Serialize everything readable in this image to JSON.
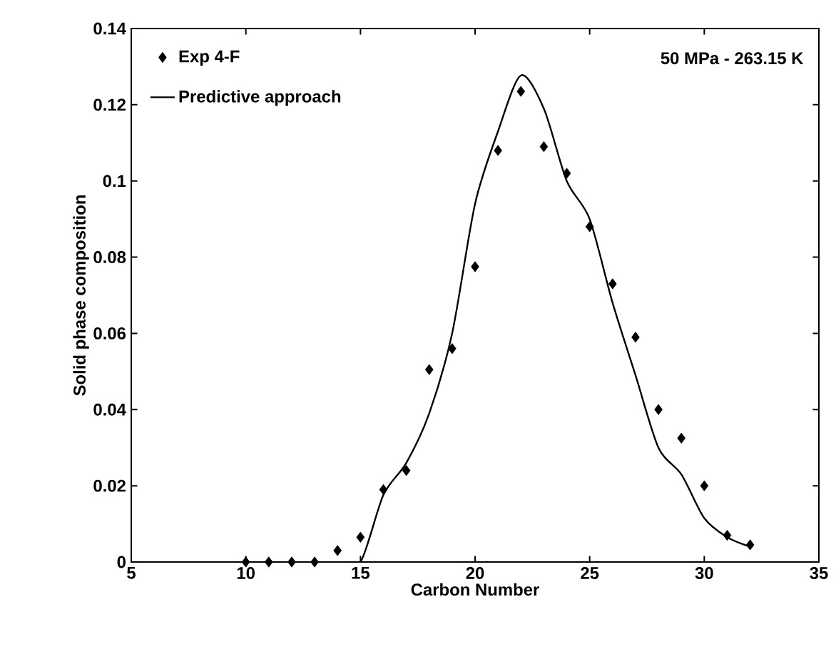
{
  "chart_data": {
    "type": "scatter",
    "xlabel": "Carbon Number",
    "ylabel": "Solid phase composition",
    "annotations": [
      "50 MPa - 263.15 K"
    ],
    "xlim": [
      5,
      35
    ],
    "ylim": [
      0,
      0.14
    ],
    "xticks": [
      5,
      10,
      15,
      20,
      25,
      30,
      35
    ],
    "yticks": [
      0,
      0.02,
      0.04,
      0.06,
      0.08,
      0.1,
      0.12,
      0.14
    ],
    "legend": "top left",
    "grid": false,
    "series": [
      {
        "name": "Exp 4-F",
        "marker": "diamond",
        "color": "#000000",
        "x": [
          10,
          11,
          12,
          13,
          14,
          15,
          16,
          17,
          18,
          19,
          20,
          21,
          22,
          23,
          24,
          25,
          26,
          27,
          28,
          29,
          30,
          31,
          32
        ],
        "values": [
          0,
          0,
          0,
          0,
          0.003,
          0.0065,
          0.019,
          0.024,
          0.0505,
          0.056,
          0.0775,
          0.108,
          0.1235,
          0.109,
          0.102,
          0.088,
          0.073,
          0.059,
          0.04,
          0.0325,
          0.02,
          0.007,
          0.0045
        ]
      },
      {
        "name": "Predictive approach",
        "type": "line",
        "marker": "none",
        "line_style": "solid",
        "color": "#000000",
        "x": [
          14,
          14.4,
          15,
          16,
          17,
          18,
          19,
          20,
          21,
          22,
          23,
          24,
          25,
          26,
          27,
          28,
          29,
          30,
          31,
          32
        ],
        "values": [
          0,
          null,
          0,
          0.0176,
          0.026,
          0.039,
          0.06,
          0.094,
          0.113,
          0.1277,
          0.119,
          0.1,
          0.09,
          0.068,
          0.049,
          0.03,
          0.023,
          0.0115,
          0.0065,
          0.004
        ]
      }
    ]
  }
}
